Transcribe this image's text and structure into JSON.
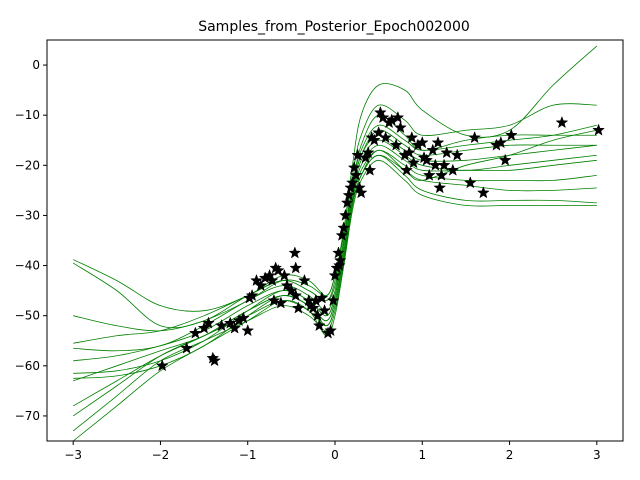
{
  "chart_data": {
    "type": "line",
    "title": "Samples_from_Posterior_Epoch002000",
    "xlabel": "",
    "ylabel": "",
    "xlim": [
      -3.3,
      3.3
    ],
    "ylim": [
      -75,
      5
    ],
    "xticks": [
      -3,
      -2,
      -1,
      0,
      1,
      2,
      3
    ],
    "yticks": [
      0,
      -10,
      -20,
      -30,
      -40,
      -50,
      -60,
      -70
    ],
    "grid": false,
    "line_color": "#008000",
    "marker_color": "#000000",
    "series": [
      {
        "x": [
          -3,
          -2.5,
          -2,
          -1.5,
          -1,
          -0.6,
          -0.3,
          -0.1,
          0,
          0.1,
          0.2,
          0.3,
          0.5,
          0.8,
          1,
          1.5,
          2,
          2.5,
          3
        ],
        "values": [
          -38.8,
          -43,
          -48,
          -49,
          -46,
          -42,
          -43,
          -46,
          -42,
          -34,
          -24,
          -16,
          -10,
          -14,
          -17,
          -15,
          -14,
          -14,
          -14
        ]
      },
      {
        "x": [
          -3,
          -2.5,
          -2,
          -1.5,
          -1,
          -0.6,
          -0.3,
          -0.1,
          0,
          0.1,
          0.2,
          0.3,
          0.5,
          0.8,
          1,
          1.5,
          2,
          2.5,
          3
        ],
        "values": [
          -39.5,
          -45,
          -52,
          -51,
          -46,
          -43,
          -45,
          -47,
          -44,
          -35,
          -25,
          -18,
          -13,
          -16,
          -18,
          -17,
          -16,
          -16,
          -16
        ]
      },
      {
        "x": [
          -3,
          -2.5,
          -2,
          -1.5,
          -1,
          -0.6,
          -0.3,
          -0.1,
          0,
          0.1,
          0.2,
          0.3,
          0.5,
          0.8,
          1,
          1.5,
          2,
          2.5,
          3
        ],
        "values": [
          -50,
          -52,
          -53,
          -51,
          -47,
          -43,
          -44,
          -46,
          -42,
          -33,
          -22,
          -14,
          -8,
          -11,
          -14,
          -13,
          -12,
          -8,
          -8
        ]
      },
      {
        "x": [
          -3,
          -2.5,
          -2,
          -1.5,
          -1,
          -0.6,
          -0.3,
          -0.1,
          0,
          0.1,
          0.2,
          0.3,
          0.5,
          0.8,
          1,
          1.5,
          2,
          2.5,
          3
        ],
        "values": [
          -55.5,
          -54,
          -53,
          -50,
          -46,
          -43,
          -45,
          -47,
          -43,
          -33,
          -20,
          -10,
          -4,
          -5,
          -9,
          -14,
          -13,
          -4,
          3.8
        ]
      },
      {
        "x": [
          -3,
          -2.5,
          -2,
          -1.5,
          -1,
          -0.6,
          -0.3,
          -0.1,
          0,
          0.1,
          0.2,
          0.3,
          0.5,
          0.8,
          1,
          1.5,
          2,
          2.5,
          3
        ],
        "values": [
          -56.5,
          -57,
          -56,
          -52,
          -47,
          -44,
          -46,
          -49,
          -45,
          -35,
          -24,
          -17,
          -12,
          -15,
          -17,
          -16,
          -15,
          -14,
          -12
        ]
      },
      {
        "x": [
          -3,
          -2.5,
          -2,
          -1.5,
          -1,
          -0.6,
          -0.3,
          -0.1,
          0,
          0.1,
          0.2,
          0.3,
          0.5,
          0.8,
          1,
          1.5,
          2,
          2.5,
          3
        ],
        "values": [
          -59,
          -58,
          -56,
          -53,
          -48,
          -45,
          -47,
          -50,
          -46,
          -36,
          -25,
          -18,
          -14,
          -17,
          -19,
          -19,
          -18,
          -17,
          -16
        ]
      },
      {
        "x": [
          -3,
          -2.5,
          -2,
          -1.5,
          -1,
          -0.6,
          -0.3,
          -0.1,
          0,
          0.1,
          0.2,
          0.3,
          0.5,
          0.8,
          1,
          1.5,
          2,
          2.5,
          3
        ],
        "values": [
          -61.5,
          -61,
          -59,
          -55,
          -49,
          -45,
          -47,
          -50,
          -46,
          -37,
          -26,
          -19,
          -15,
          -18,
          -20,
          -21,
          -20,
          -19,
          -18
        ]
      },
      {
        "x": [
          -3,
          -2.5,
          -2,
          -1.5,
          -1,
          -0.6,
          -0.3,
          -0.1,
          0,
          0.1,
          0.2,
          0.3,
          0.5,
          0.8,
          1,
          1.5,
          2,
          2.5,
          3
        ],
        "values": [
          -62.5,
          -62,
          -60,
          -56,
          -50,
          -46,
          -48,
          -51,
          -47,
          -38,
          -27,
          -20,
          -16,
          -19,
          -21,
          -21,
          -21,
          -20,
          -19
        ]
      },
      {
        "x": [
          -3,
          -2.5,
          -2,
          -1.5,
          -1,
          -0.6,
          -0.3,
          -0.1,
          0,
          0.1,
          0.2,
          0.3,
          0.5,
          0.8,
          1,
          1.5,
          2,
          2.5,
          3
        ],
        "values": [
          -63,
          -60,
          -57,
          -54,
          -49,
          -46,
          -48,
          -51,
          -47,
          -38,
          -27,
          -21,
          -17,
          -20,
          -22,
          -23,
          -23,
          -23,
          -22
        ]
      },
      {
        "x": [
          -3,
          -2.5,
          -2,
          -1.5,
          -1,
          -0.6,
          -0.3,
          -0.1,
          0,
          0.1,
          0.2,
          0.3,
          0.5,
          0.8,
          1,
          1.5,
          2,
          2.5,
          3
        ],
        "values": [
          -68,
          -63,
          -58,
          -54,
          -49,
          -46,
          -48,
          -52,
          -48,
          -39,
          -28,
          -22,
          -18,
          -21,
          -23,
          -24,
          -25,
          -25,
          -24.5
        ]
      },
      {
        "x": [
          -3,
          -2.5,
          -2,
          -1.5,
          -1,
          -0.6,
          -0.3,
          -0.1,
          0,
          0.1,
          0.2,
          0.3,
          0.5,
          0.8,
          1,
          1.5,
          2,
          2.5,
          3
        ],
        "values": [
          -70,
          -64,
          -58,
          -54,
          -50,
          -47,
          -49,
          -52,
          -48,
          -39,
          -28,
          -22,
          -18,
          -22,
          -25,
          -27,
          -27,
          -27,
          -27.5
        ]
      },
      {
        "x": [
          -3,
          -2.5,
          -2,
          -1.5,
          -1,
          -0.6,
          -0.3,
          -0.1,
          0,
          0.1,
          0.2,
          0.3,
          0.5,
          0.8,
          1,
          1.5,
          2,
          2.5,
          3
        ],
        "values": [
          -73,
          -66,
          -59,
          -55,
          -51,
          -48,
          -50,
          -53,
          -49,
          -40,
          -29,
          -23,
          -19,
          -23,
          -26,
          -28,
          -28,
          -28,
          -28
        ]
      },
      {
        "x": [
          -3,
          -2.5,
          -2,
          -1.5,
          -1,
          -0.6,
          -0.3,
          -0.1,
          0,
          0.1,
          0.2,
          0.3,
          0.5,
          0.8,
          1,
          1.5,
          2,
          2.5,
          3
        ],
        "values": [
          -75,
          -68,
          -61,
          -56,
          -51,
          -47,
          -49,
          -54,
          -50,
          -40,
          -28,
          -22,
          -17,
          -21,
          -23,
          -20,
          -18,
          -15,
          -13
        ]
      }
    ],
    "points": [
      [
        -1.98,
        -60
      ],
      [
        -1.7,
        -56.5
      ],
      [
        -1.6,
        -53.5
      ],
      [
        -1.5,
        -52.5
      ],
      [
        -1.45,
        -51.5
      ],
      [
        -1.4,
        -58.5
      ],
      [
        -1.38,
        -59
      ],
      [
        -1.3,
        -52
      ],
      [
        -1.2,
        -51.5
      ],
      [
        -1.15,
        -52.5
      ],
      [
        -1.1,
        -51
      ],
      [
        -1.05,
        -50.5
      ],
      [
        -1,
        -53
      ],
      [
        -0.98,
        -46.5
      ],
      [
        -0.95,
        -46
      ],
      [
        -0.9,
        -43
      ],
      [
        -0.85,
        -44
      ],
      [
        -0.8,
        -42.5
      ],
      [
        -0.75,
        -42
      ],
      [
        -0.72,
        -43
      ],
      [
        -0.7,
        -47
      ],
      [
        -0.68,
        -40.5
      ],
      [
        -0.65,
        -41
      ],
      [
        -0.62,
        -47.5
      ],
      [
        -0.58,
        -42
      ],
      [
        -0.55,
        -44
      ],
      [
        -0.5,
        -45
      ],
      [
        -0.45,
        -46
      ],
      [
        -0.42,
        -48.5
      ],
      [
        -0.45,
        -40.5
      ],
      [
        -0.46,
        -37.5
      ],
      [
        -0.35,
        -43
      ],
      [
        -0.3,
        -47
      ],
      [
        -0.28,
        -48
      ],
      [
        -0.25,
        -48.5
      ],
      [
        -0.22,
        -47
      ],
      [
        -0.2,
        -50
      ],
      [
        -0.18,
        -52
      ],
      [
        -0.15,
        -46.5
      ],
      [
        -0.12,
        -49
      ],
      [
        -0.08,
        -53.5
      ],
      [
        -0.05,
        -53
      ],
      [
        -0.02,
        -47
      ],
      [
        0,
        -42
      ],
      [
        0.02,
        -40.5
      ],
      [
        0.04,
        -37.5
      ],
      [
        0.05,
        -40
      ],
      [
        0.06,
        -39
      ],
      [
        0.08,
        -34
      ],
      [
        0.1,
        -32.5
      ],
      [
        0.12,
        -30
      ],
      [
        0.14,
        -27.5
      ],
      [
        0.16,
        -26
      ],
      [
        0.18,
        -24.5
      ],
      [
        0.2,
        -23.5
      ],
      [
        0.22,
        -20.5
      ],
      [
        0.24,
        -22
      ],
      [
        0.26,
        -18
      ],
      [
        0.28,
        -24.5
      ],
      [
        0.3,
        -25.5
      ],
      [
        0.35,
        -18.5
      ],
      [
        0.38,
        -17.5
      ],
      [
        0.4,
        -21
      ],
      [
        0.42,
        -14.5
      ],
      [
        0.45,
        -15
      ],
      [
        0.5,
        -13.5
      ],
      [
        0.52,
        -9.5
      ],
      [
        0.55,
        -10.5
      ],
      [
        0.58,
        -14.5
      ],
      [
        0.62,
        -11.5
      ],
      [
        0.65,
        -11
      ],
      [
        0.7,
        -16
      ],
      [
        0.72,
        -10.5
      ],
      [
        0.75,
        -12.5
      ],
      [
        0.8,
        -18
      ],
      [
        0.82,
        -21
      ],
      [
        0.85,
        -17.5
      ],
      [
        0.88,
        -14.5
      ],
      [
        0.9,
        -19.5
      ],
      [
        0.95,
        -16
      ],
      [
        1,
        -15.5
      ],
      [
        1.02,
        -18.5
      ],
      [
        1.05,
        -19
      ],
      [
        1.08,
        -22
      ],
      [
        1.12,
        -17
      ],
      [
        1.15,
        -20
      ],
      [
        1.18,
        -15.5
      ],
      [
        1.2,
        -24.5
      ],
      [
        1.22,
        -22
      ],
      [
        1.25,
        -20
      ],
      [
        1.28,
        -17.5
      ],
      [
        1.35,
        -21
      ],
      [
        1.4,
        -18
      ],
      [
        1.55,
        -23.5
      ],
      [
        1.6,
        -14.5
      ],
      [
        1.7,
        -25.5
      ],
      [
        1.85,
        -16
      ],
      [
        1.9,
        -15.5
      ],
      [
        1.95,
        -19
      ],
      [
        2.02,
        -14
      ],
      [
        2.6,
        -11.5
      ],
      [
        3.02,
        -13
      ]
    ]
  }
}
